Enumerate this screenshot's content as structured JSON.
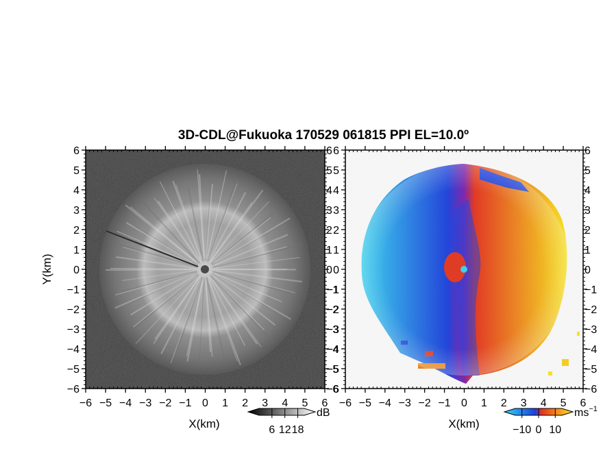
{
  "title": "3D-CDL@Fukuoka 170529 061815 PPI EL=10.0º",
  "chart_data": [
    {
      "type": "heatmap",
      "panel": "reflectivity",
      "xlabel": "X(km)",
      "ylabel": "Y(km)",
      "xlim": [
        -6,
        6
      ],
      "ylim": [
        -6,
        6
      ],
      "xticks": [
        "−6",
        "−5",
        "−4",
        "−3",
        "−2",
        "−1",
        "0",
        "1",
        "2",
        "3",
        "4",
        "5",
        "6"
      ],
      "yticks": [
        "6",
        "5",
        "4",
        "3",
        "2",
        "1",
        "0",
        "−1",
        "−2",
        "−3",
        "−4",
        "−5",
        "−6"
      ],
      "colormap": "grayscale (black to white)",
      "colorbar": {
        "unit": "dB",
        "ticks": [
          "6",
          "12",
          "18"
        ],
        "range": [
          0,
          21
        ]
      },
      "features": {
        "echo_radius_km": 5.3,
        "bright_ring_radius_km": 3.0,
        "center": [
          0,
          0
        ]
      }
    },
    {
      "type": "heatmap",
      "panel": "doppler velocity",
      "xlabel": "X(km)",
      "xlim": [
        -6,
        6
      ],
      "ylim": [
        -6,
        6
      ],
      "xticks": [
        "−6",
        "−5",
        "−4",
        "−3",
        "−2",
        "−1",
        "0",
        "1",
        "2",
        "3",
        "4",
        "5",
        "6"
      ],
      "yticks": [
        "6",
        "5",
        "4",
        "3",
        "2",
        "1",
        "0",
        "−1",
        "−2",
        "−3",
        "−4",
        "−5",
        "−6"
      ],
      "colormap": "cyan-blue (negative) to red-yellow (positive)",
      "colorbar": {
        "unit": "ms",
        "unit_sup": "−1",
        "ticks": [
          "−10",
          "0",
          "10"
        ],
        "range": [
          -14,
          14
        ]
      },
      "features": {
        "echo_radius_km": 5.3,
        "zero_line": "near x = -0.5 km, tilted",
        "center": [
          0,
          0
        ]
      }
    }
  ],
  "colors": {
    "neg_light": "#36d6f5",
    "neg_dark": "#1a3fe0",
    "pos_dark": "#e8341c",
    "pos_light": "#ffe81a",
    "background": "#ffffff",
    "frame": "#000000"
  }
}
